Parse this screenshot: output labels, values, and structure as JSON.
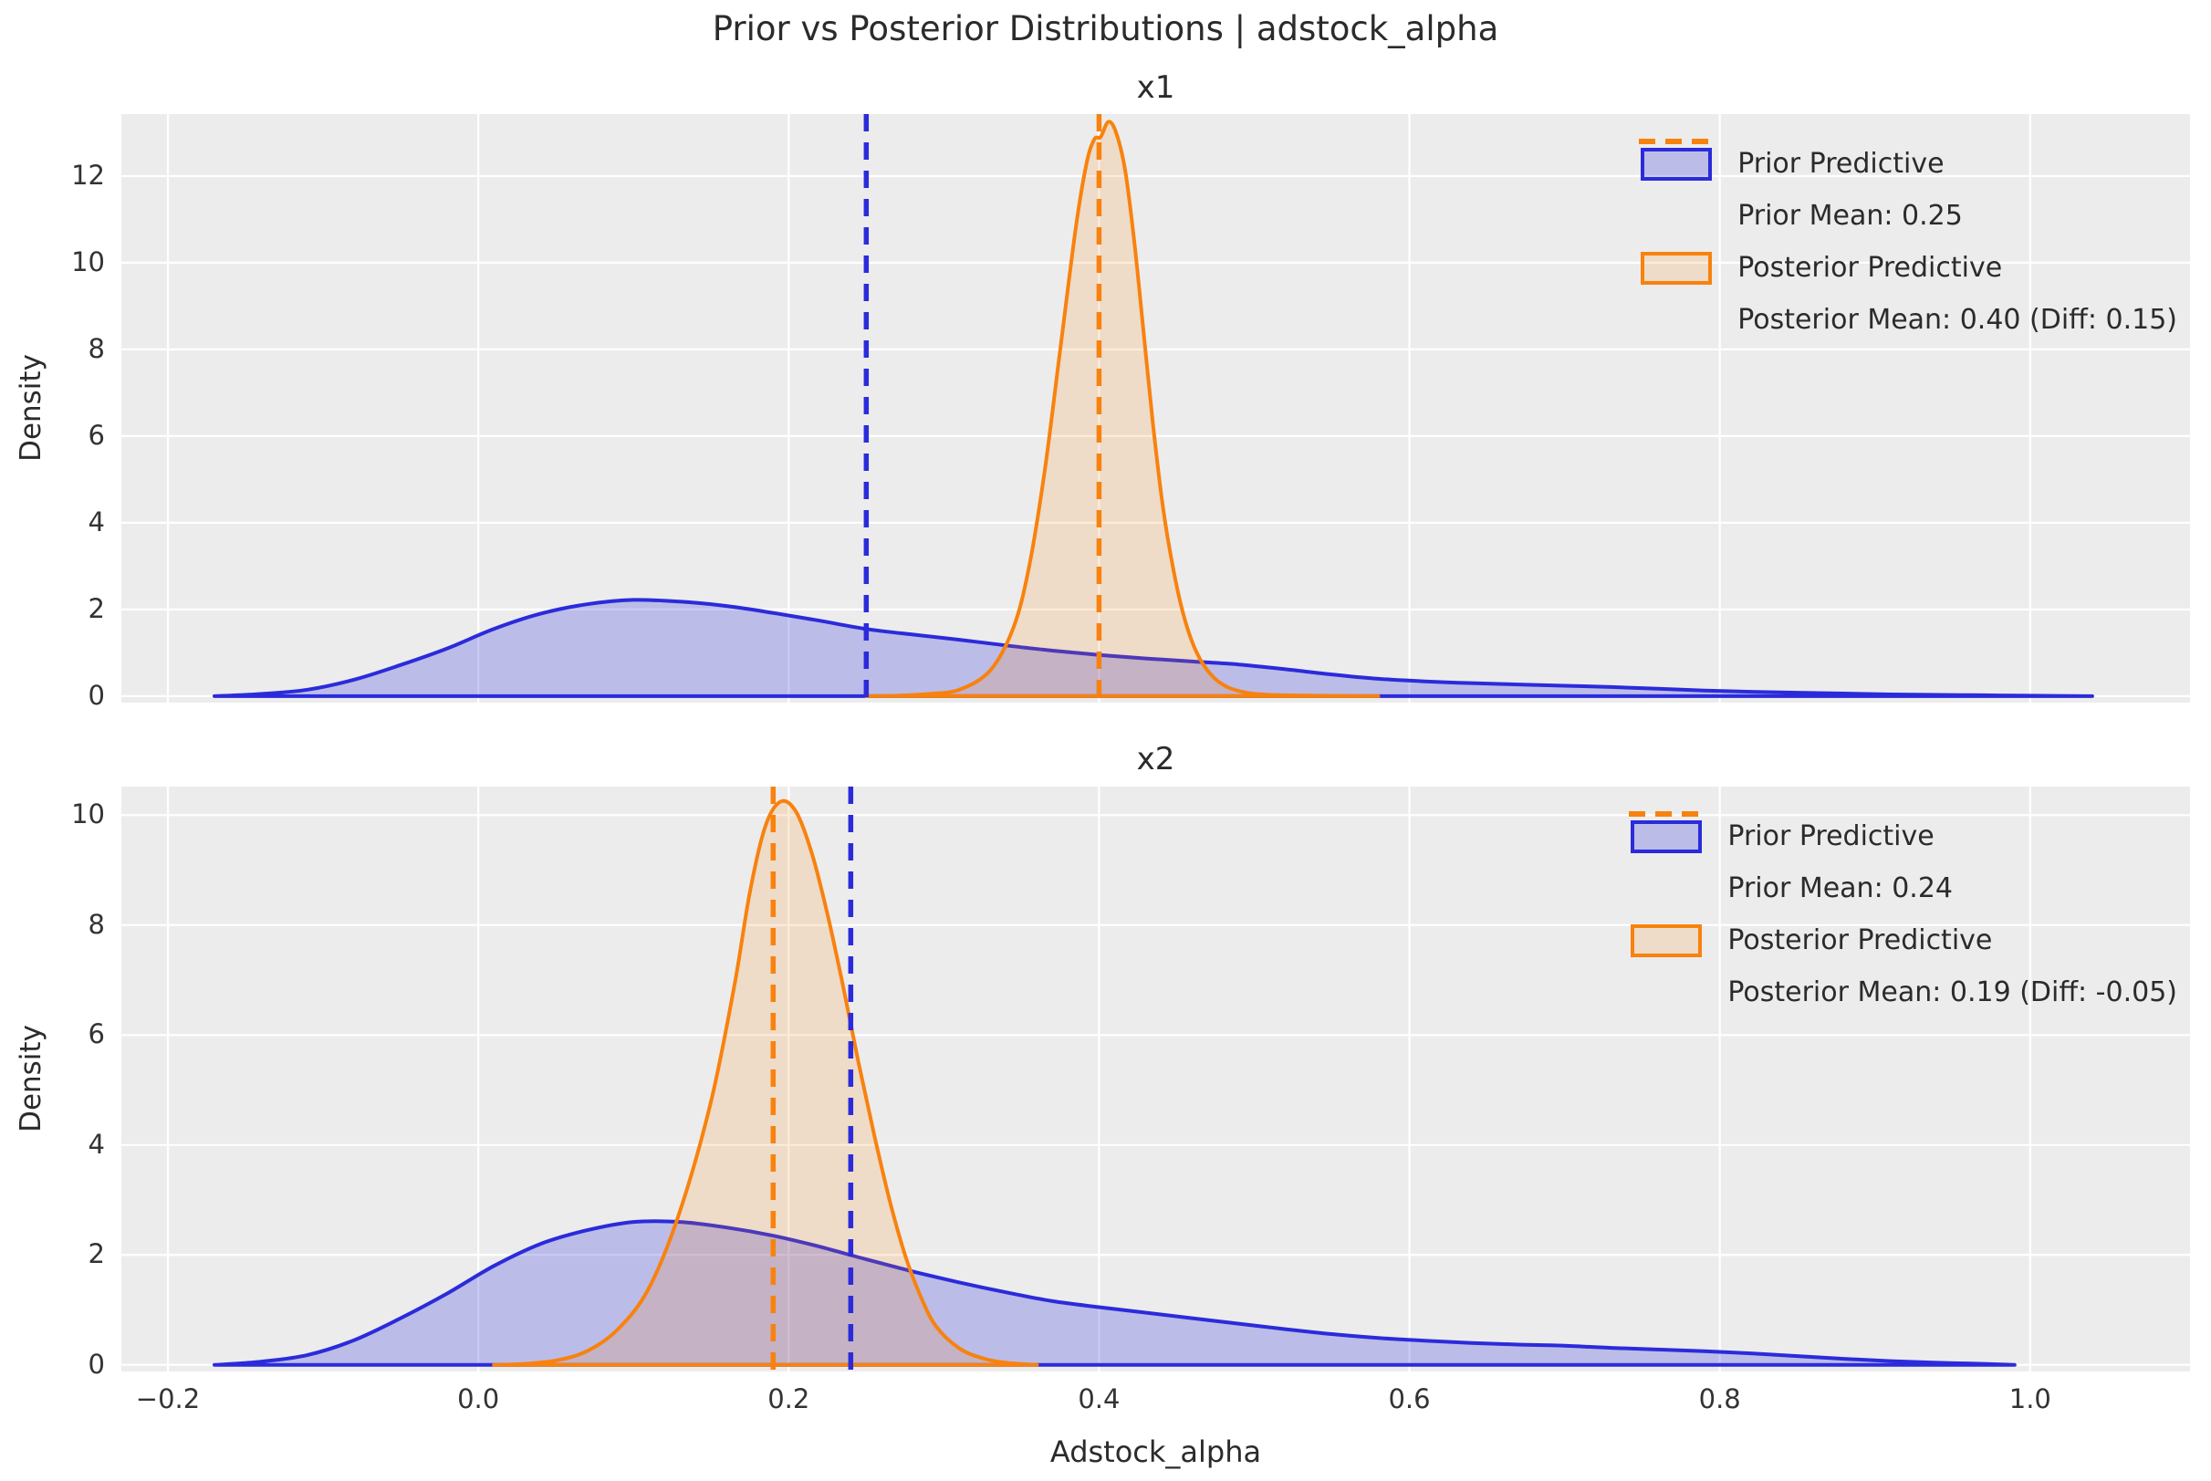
{
  "figure": {
    "suptitle": "Prior vs Posterior Distributions | adstock_alpha",
    "background": "#ffffff",
    "axes_background": "#ececec",
    "grid_color": "#ffffff",
    "text_color": "#333333",
    "blue": "#2b2bdb",
    "orange": "#f8820e",
    "blue_fill": "rgba(43,43,219,0.25)",
    "orange_fill": "rgba(248,130,14,0.16)"
  },
  "chart_data": [
    {
      "type": "area",
      "title": "x1",
      "xlabel": "",
      "ylabel": "Density",
      "grid": true,
      "legend_position": "upper right",
      "xlim": [
        -0.23,
        1.103
      ],
      "ylim": [
        -0.15,
        13.43
      ],
      "xticks": [
        -0.2,
        0.0,
        0.2,
        0.4,
        0.6,
        0.8,
        1.0
      ],
      "xticklabels": [],
      "yticks": [
        0,
        2,
        4,
        6,
        8,
        10,
        12
      ],
      "prior_mean": 0.25,
      "posterior_mean": 0.4,
      "mean_diff": 0.15,
      "legend": [
        "Prior Predictive",
        "Prior Mean: 0.25",
        "Posterior Predictive",
        "Posterior Mean: 0.40 (Diff: 0.15)"
      ],
      "series": [
        {
          "name": "Prior Predictive",
          "color_key": "blue",
          "points": [
            [
              -0.17,
              0
            ],
            [
              -0.14,
              0.05
            ],
            [
              -0.11,
              0.15
            ],
            [
              -0.08,
              0.38
            ],
            [
              -0.05,
              0.72
            ],
            [
              -0.02,
              1.1
            ],
            [
              0.01,
              1.55
            ],
            [
              0.04,
              1.9
            ],
            [
              0.07,
              2.12
            ],
            [
              0.1,
              2.22
            ],
            [
              0.13,
              2.18
            ],
            [
              0.16,
              2.08
            ],
            [
              0.19,
              1.92
            ],
            [
              0.22,
              1.74
            ],
            [
              0.25,
              1.55
            ],
            [
              0.28,
              1.42
            ],
            [
              0.31,
              1.3
            ],
            [
              0.34,
              1.17
            ],
            [
              0.37,
              1.05
            ],
            [
              0.4,
              0.95
            ],
            [
              0.43,
              0.87
            ],
            [
              0.46,
              0.8
            ],
            [
              0.49,
              0.73
            ],
            [
              0.52,
              0.62
            ],
            [
              0.55,
              0.5
            ],
            [
              0.58,
              0.4
            ],
            [
              0.61,
              0.34
            ],
            [
              0.64,
              0.3
            ],
            [
              0.67,
              0.27
            ],
            [
              0.7,
              0.24
            ],
            [
              0.73,
              0.21
            ],
            [
              0.76,
              0.17
            ],
            [
              0.79,
              0.13
            ],
            [
              0.82,
              0.1
            ],
            [
              0.85,
              0.08
            ],
            [
              0.88,
              0.06
            ],
            [
              0.91,
              0.04
            ],
            [
              0.94,
              0.03
            ],
            [
              0.97,
              0.02
            ],
            [
              1.0,
              0.01
            ],
            [
              1.04,
              0
            ]
          ]
        },
        {
          "name": "Posterior Predictive",
          "color_key": "orange",
          "points": [
            [
              0.25,
              0
            ],
            [
              0.27,
              0.01
            ],
            [
              0.29,
              0.05
            ],
            [
              0.31,
              0.15
            ],
            [
              0.33,
              0.6
            ],
            [
              0.345,
              1.6
            ],
            [
              0.355,
              3.0
            ],
            [
              0.365,
              5.2
            ],
            [
              0.375,
              8.0
            ],
            [
              0.385,
              10.8
            ],
            [
              0.392,
              12.3
            ],
            [
              0.397,
              12.85
            ],
            [
              0.401,
              12.9
            ],
            [
              0.406,
              13.25
            ],
            [
              0.411,
              13.0
            ],
            [
              0.417,
              12.1
            ],
            [
              0.423,
              10.4
            ],
            [
              0.429,
              8.3
            ],
            [
              0.435,
              6.2
            ],
            [
              0.441,
              4.4
            ],
            [
              0.448,
              2.9
            ],
            [
              0.455,
              1.8
            ],
            [
              0.463,
              1.0
            ],
            [
              0.472,
              0.5
            ],
            [
              0.482,
              0.22
            ],
            [
              0.495,
              0.08
            ],
            [
              0.51,
              0.03
            ],
            [
              0.54,
              0.01
            ],
            [
              0.58,
              0
            ]
          ]
        }
      ]
    },
    {
      "type": "area",
      "title": "x2",
      "xlabel": "Adstock_alpha",
      "ylabel": "Density",
      "grid": true,
      "legend_position": "upper right",
      "xlim": [
        -0.23,
        1.103
      ],
      "ylim": [
        -0.12,
        10.52
      ],
      "xticks": [
        -0.2,
        0.0,
        0.2,
        0.4,
        0.6,
        0.8,
        1.0
      ],
      "xticklabels": [
        "−0.2",
        "0.0",
        "0.2",
        "0.4",
        "0.6",
        "0.8",
        "1.0"
      ],
      "yticks": [
        0,
        2,
        4,
        6,
        8,
        10
      ],
      "prior_mean": 0.24,
      "posterior_mean": 0.19,
      "mean_diff": -0.05,
      "legend": [
        "Prior Predictive",
        "Prior Mean: 0.24",
        "Posterior Predictive",
        "Posterior Mean: 0.19 (Diff: -0.05)"
      ],
      "series": [
        {
          "name": "Prior Predictive",
          "color_key": "blue",
          "points": [
            [
              -0.17,
              0
            ],
            [
              -0.14,
              0.06
            ],
            [
              -0.11,
              0.18
            ],
            [
              -0.08,
              0.45
            ],
            [
              -0.05,
              0.85
            ],
            [
              -0.02,
              1.3
            ],
            [
              0.01,
              1.8
            ],
            [
              0.04,
              2.2
            ],
            [
              0.07,
              2.45
            ],
            [
              0.1,
              2.6
            ],
            [
              0.13,
              2.6
            ],
            [
              0.16,
              2.5
            ],
            [
              0.19,
              2.35
            ],
            [
              0.22,
              2.15
            ],
            [
              0.25,
              1.92
            ],
            [
              0.28,
              1.7
            ],
            [
              0.31,
              1.5
            ],
            [
              0.34,
              1.32
            ],
            [
              0.37,
              1.16
            ],
            [
              0.4,
              1.05
            ],
            [
              0.43,
              0.95
            ],
            [
              0.46,
              0.85
            ],
            [
              0.49,
              0.75
            ],
            [
              0.52,
              0.65
            ],
            [
              0.55,
              0.56
            ],
            [
              0.58,
              0.49
            ],
            [
              0.61,
              0.44
            ],
            [
              0.64,
              0.4
            ],
            [
              0.67,
              0.37
            ],
            [
              0.7,
              0.35
            ],
            [
              0.73,
              0.31
            ],
            [
              0.76,
              0.28
            ],
            [
              0.79,
              0.25
            ],
            [
              0.82,
              0.21
            ],
            [
              0.85,
              0.16
            ],
            [
              0.88,
              0.11
            ],
            [
              0.91,
              0.07
            ],
            [
              0.94,
              0.04
            ],
            [
              0.97,
              0.02
            ],
            [
              0.99,
              0
            ]
          ]
        },
        {
          "name": "Posterior Predictive",
          "color_key": "orange",
          "points": [
            [
              0.01,
              0
            ],
            [
              0.03,
              0.02
            ],
            [
              0.05,
              0.08
            ],
            [
              0.07,
              0.25
            ],
            [
              0.09,
              0.65
            ],
            [
              0.11,
              1.4
            ],
            [
              0.13,
              2.8
            ],
            [
              0.15,
              4.8
            ],
            [
              0.165,
              6.9
            ],
            [
              0.175,
              8.6
            ],
            [
              0.185,
              9.8
            ],
            [
              0.195,
              10.25
            ],
            [
              0.205,
              10.05
            ],
            [
              0.215,
              9.3
            ],
            [
              0.225,
              8.2
            ],
            [
              0.235,
              6.9
            ],
            [
              0.245,
              5.5
            ],
            [
              0.255,
              4.2
            ],
            [
              0.265,
              3.0
            ],
            [
              0.275,
              2.0
            ],
            [
              0.285,
              1.25
            ],
            [
              0.295,
              0.7
            ],
            [
              0.31,
              0.3
            ],
            [
              0.325,
              0.12
            ],
            [
              0.34,
              0.04
            ],
            [
              0.36,
              0
            ]
          ]
        }
      ]
    }
  ]
}
